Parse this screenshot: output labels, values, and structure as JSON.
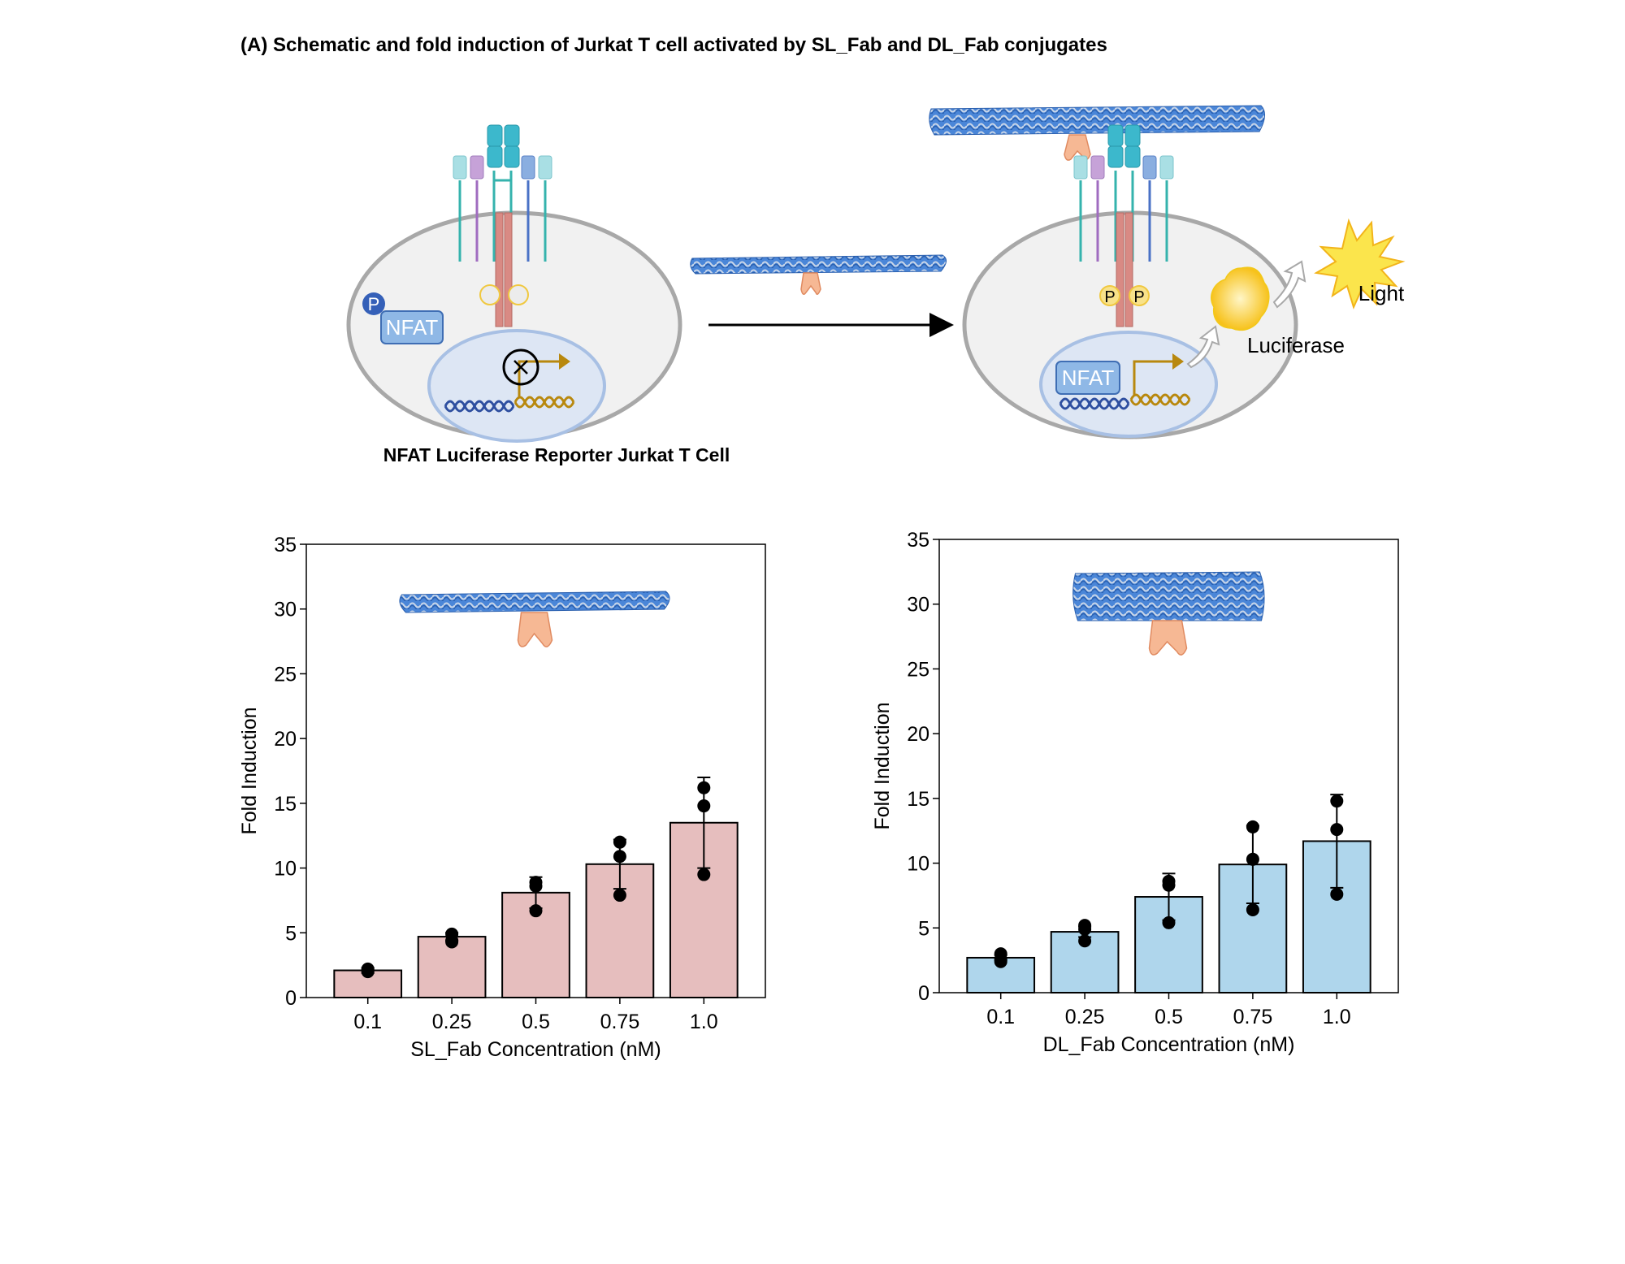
{
  "figure": {
    "title": "(A) Schematic and fold induction of Jurkat T cell activated by SL_Fab and DL_Fab conjugates"
  },
  "schematic": {
    "cell_caption": "NFAT Luciferase Reporter Jurkat T Cell",
    "left_cell": {
      "nfat_label": "NFAT",
      "phospho_label": "P"
    },
    "right_cell": {
      "nfat_label": "NFAT",
      "phospho_labels": [
        "P",
        "P"
      ],
      "luciferase_label": "Luciferase",
      "light_label": "Light"
    }
  },
  "colors": {
    "sl_bar": "#e6bebe",
    "dl_bar": "#afd6ec",
    "fab": "#f6b894",
    "origami": "#3f7fd6",
    "nfat_box": "#8fb8e6",
    "cell_fill": "#f1f1f1",
    "cell_stroke": "#a8a8a8",
    "nucleus_fill": "#dde6f4"
  },
  "chart_data": [
    {
      "type": "bar",
      "categories": [
        "0.1",
        "0.25",
        "0.5",
        "0.75",
        "1.0"
      ],
      "values": [
        2.1,
        4.7,
        8.1,
        10.3,
        13.5
      ],
      "errors": [
        0.2,
        0.3,
        1.2,
        1.9,
        3.5
      ],
      "points": [
        [
          2.1,
          2.0,
          2.2
        ],
        [
          4.9,
          4.4,
          4.3
        ],
        [
          8.9,
          8.6,
          6.7
        ],
        [
          12.0,
          10.9,
          7.9
        ],
        [
          16.2,
          14.8,
          9.5
        ]
      ],
      "xlabel": "SL_Fab Concentration (nM)",
      "ylabel": "Fold Induction",
      "ylim": [
        0,
        35
      ],
      "yticks": [
        "0",
        "5",
        "10",
        "15",
        "20",
        "25",
        "30",
        "35"
      ],
      "color": "#e6bebe"
    },
    {
      "type": "bar",
      "categories": [
        "0.1",
        "0.25",
        "0.5",
        "0.75",
        "1.0"
      ],
      "values": [
        2.7,
        4.7,
        7.4,
        9.9,
        11.7
      ],
      "errors": [
        0.2,
        0.4,
        1.8,
        3.0,
        3.6
      ],
      "points": [
        [
          3.0,
          2.4,
          2.6
        ],
        [
          5.2,
          4.9,
          4.0
        ],
        [
          8.6,
          8.3,
          5.4
        ],
        [
          12.8,
          10.3,
          6.4
        ],
        [
          14.8,
          12.6,
          7.6
        ]
      ],
      "xlabel": "DL_Fab Concentration (nM)",
      "ylabel": "Fold Induction",
      "ylim": [
        0,
        35
      ],
      "yticks": [
        "0",
        "5",
        "10",
        "15",
        "20",
        "25",
        "30",
        "35"
      ],
      "color": "#afd6ec"
    }
  ]
}
